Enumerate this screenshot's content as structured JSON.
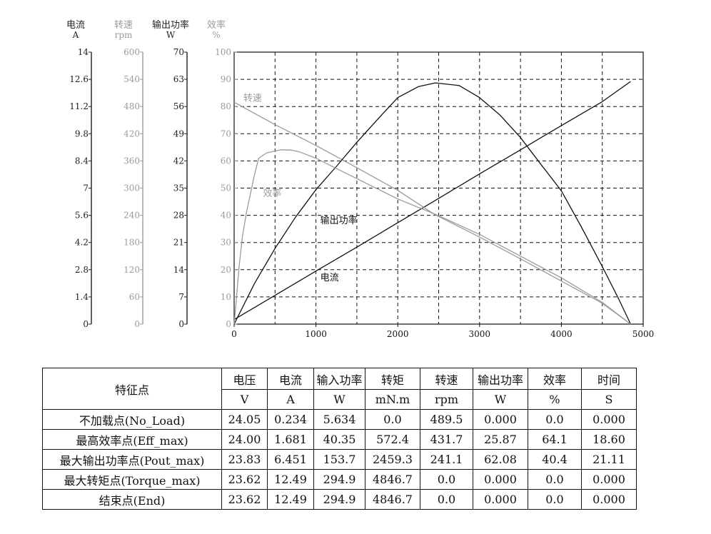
{
  "chart_data": {
    "type": "line",
    "x": {
      "range": [
        0,
        5000
      ],
      "ticks": [
        0,
        1000,
        2000,
        3000,
        4000,
        5000
      ],
      "tick_labels": [
        "0",
        "1000",
        "2000",
        "3000",
        "4000",
        "5000"
      ]
    },
    "y_axes": [
      {
        "key": "current",
        "title": "电流",
        "unit": "A",
        "color": "#222222",
        "range": [
          0,
          14
        ],
        "tick_labels": [
          "0",
          "1.4",
          "2.8",
          "4.2",
          "5.6",
          "7",
          "8.4",
          "9.8",
          "11.2",
          "12.6",
          "14"
        ]
      },
      {
        "key": "speed",
        "title": "转速",
        "unit": "rpm",
        "color": "#9a9a9a",
        "range": [
          0,
          600
        ],
        "tick_labels": [
          "0",
          "60",
          "120",
          "180",
          "240",
          "300",
          "360",
          "420",
          "480",
          "540",
          "600"
        ]
      },
      {
        "key": "power",
        "title": "输出功率",
        "unit": "W",
        "color": "#222222",
        "range": [
          0,
          70
        ],
        "tick_labels": [
          "0",
          "7",
          "14",
          "21",
          "28",
          "35",
          "42",
          "49",
          "56",
          "63",
          "70"
        ]
      },
      {
        "key": "efficiency",
        "title": "效率",
        "unit": "%",
        "color": "#9a9a9a",
        "range": [
          0,
          100
        ],
        "tick_labels": [
          "0",
          "10",
          "20",
          "30",
          "40",
          "50",
          "60",
          "70",
          "80",
          "90",
          "100"
        ]
      }
    ],
    "grid": true,
    "series": [
      {
        "name": "电流",
        "axis": "current",
        "color": "#111111",
        "x": [
          0,
          500,
          1000,
          1500,
          2000,
          2500,
          3000,
          3500,
          4000,
          4500,
          4846.7
        ],
        "y": [
          0.234,
          1.48,
          2.73,
          3.96,
          5.22,
          6.47,
          7.73,
          8.97,
          10.22,
          11.45,
          12.49
        ]
      },
      {
        "name": "转速",
        "axis": "speed",
        "color": "#9a9a9a",
        "x": [
          0,
          500,
          1000,
          1500,
          2000,
          2459.3,
          3000,
          3500,
          4000,
          4500,
          4846.7
        ],
        "y": [
          489.5,
          440,
          394,
          345,
          295,
          241.1,
          192,
          144,
          95,
          46,
          0
        ]
      },
      {
        "name": "输出功率",
        "axis": "power",
        "color": "#111111",
        "x": [
          0,
          250,
          500,
          750,
          1000,
          1250,
          1500,
          1750,
          2000,
          2250,
          2459.3,
          2750,
          3000,
          3250,
          3500,
          3750,
          4000,
          4250,
          4500,
          4700,
          4846.7
        ],
        "y": [
          0,
          10.5,
          19.5,
          27.5,
          34.6,
          40.6,
          46.8,
          52.6,
          58.3,
          61.1,
          62.08,
          61.4,
          58.3,
          53.8,
          48.0,
          41.1,
          34.3,
          24.8,
          14.8,
          6.5,
          0
        ]
      },
      {
        "name": "效率",
        "axis": "efficiency",
        "color": "#9a9a9a",
        "x": [
          0,
          30,
          60,
          100,
          150,
          200,
          250,
          300,
          400,
          572.4,
          700,
          800,
          1000,
          1250,
          1500,
          2000,
          2459.3,
          3000,
          3500,
          4000,
          4500,
          4846.7
        ],
        "y": [
          0,
          10,
          21,
          32,
          41,
          48,
          55,
          61,
          63,
          64.1,
          64,
          63.3,
          61,
          57.2,
          53.5,
          46,
          40.4,
          33,
          25,
          17,
          8,
          0
        ]
      }
    ],
    "annotations": [
      {
        "text": "转速",
        "series": "转速",
        "x": 60,
        "axis_value": 82
      },
      {
        "text": "效率",
        "series": "效率",
        "x": 300,
        "axis_value": 47
      },
      {
        "text": "输出功率",
        "series": "输出功率",
        "x": 1000,
        "axis_value": 37
      },
      {
        "text": "电流",
        "series": "电流",
        "x": 1000,
        "axis_value": 16
      }
    ]
  },
  "table": {
    "corner_label": "特征点",
    "columns": [
      {
        "name": "电压",
        "unit": "V"
      },
      {
        "name": "电流",
        "unit": "A"
      },
      {
        "name": "输入功率",
        "unit": "W"
      },
      {
        "name": "转矩",
        "unit": "mN.m"
      },
      {
        "name": "转速",
        "unit": "rpm"
      },
      {
        "name": "输出功率",
        "unit": "W"
      },
      {
        "name": "效率",
        "unit": "%"
      },
      {
        "name": "时间",
        "unit": "S"
      }
    ],
    "rows": [
      {
        "label": "不加载点(No_Load)",
        "values": [
          "24.05",
          "0.234",
          "5.634",
          "0.0",
          "489.5",
          "0.000",
          "0.0",
          "0.000"
        ]
      },
      {
        "label": "最高效率点(Eff_max)",
        "values": [
          "24.00",
          "1.681",
          "40.35",
          "572.4",
          "431.7",
          "25.87",
          "64.1",
          "18.60"
        ]
      },
      {
        "label": "最大输出功率点(Pout_max)",
        "values": [
          "23.83",
          "6.451",
          "153.7",
          "2459.3",
          "241.1",
          "62.08",
          "40.4",
          "21.11"
        ]
      },
      {
        "label": "最大转矩点(Torque_max)",
        "values": [
          "23.62",
          "12.49",
          "294.9",
          "4846.7",
          "0.0",
          "0.000",
          "0.0",
          "0.000"
        ]
      },
      {
        "label": "结束点(End)",
        "values": [
          "23.62",
          "12.49",
          "294.9",
          "4846.7",
          "0.0",
          "0.000",
          "0.0",
          "0.000"
        ]
      }
    ]
  }
}
